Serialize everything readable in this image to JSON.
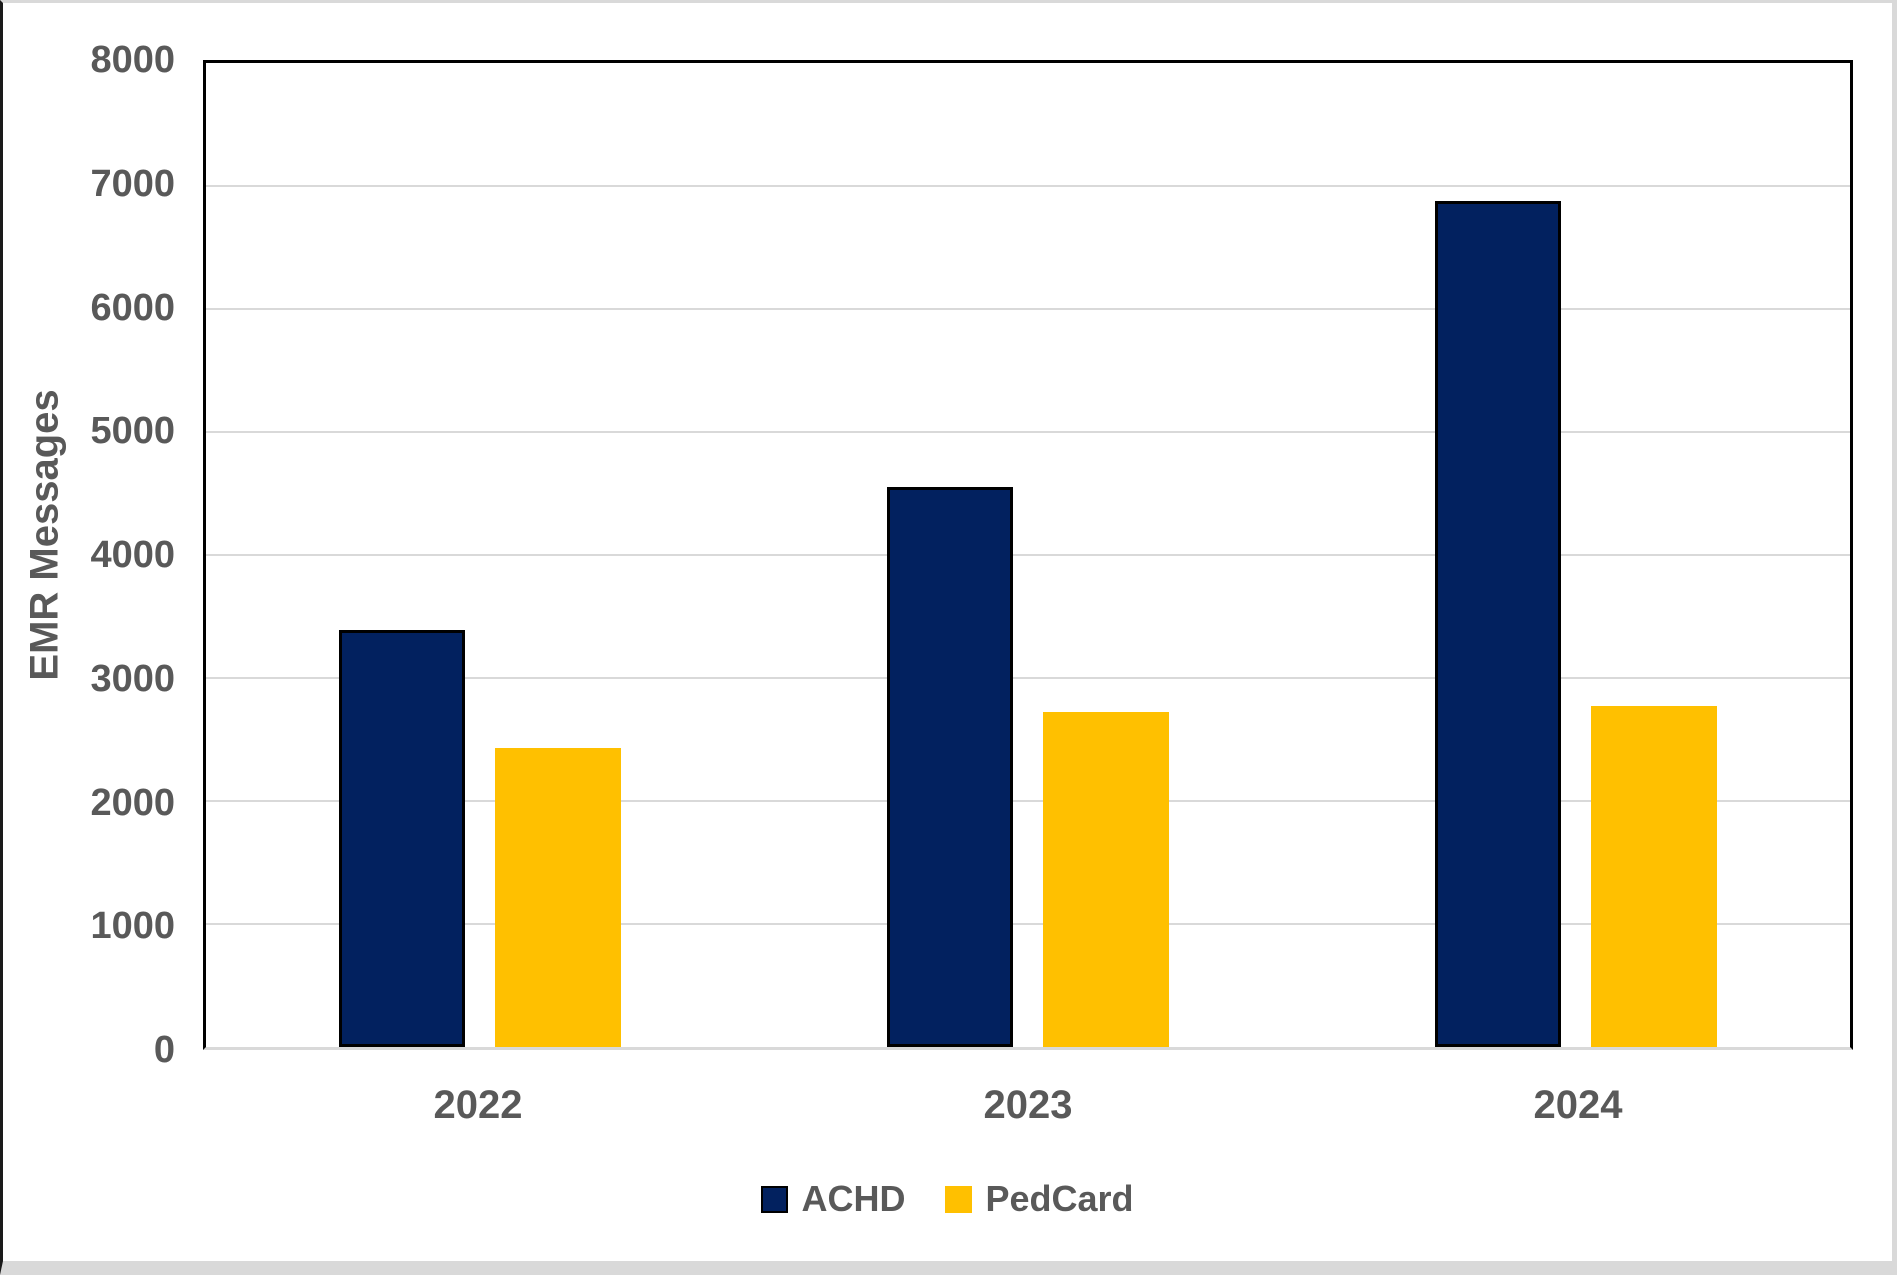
{
  "chart_data": {
    "type": "bar",
    "title": "",
    "xlabel": "",
    "ylabel": "EMR Messages",
    "categories": [
      "2022",
      "2023",
      "2024"
    ],
    "series": [
      {
        "name": "ACHD",
        "color": "#02215F",
        "border_color": "#000000",
        "values": [
          3390,
          4550,
          6875
        ]
      },
      {
        "name": "PedCard",
        "color": "#FFC000",
        "border_color": "",
        "values": [
          2430,
          2720,
          2770
        ]
      }
    ],
    "ylim": [
      0,
      8000
    ],
    "yticks": [
      8000,
      7000,
      6000,
      5000,
      4000,
      3000,
      2000,
      1000,
      0
    ],
    "grid": "horizontal",
    "gridline_color": "#D9D9D9",
    "axis_text_color": "#595959",
    "plot_border_color": "#000000",
    "legend_position": "bottom",
    "legend_entries": [
      "ACHD",
      "PedCard"
    ]
  }
}
